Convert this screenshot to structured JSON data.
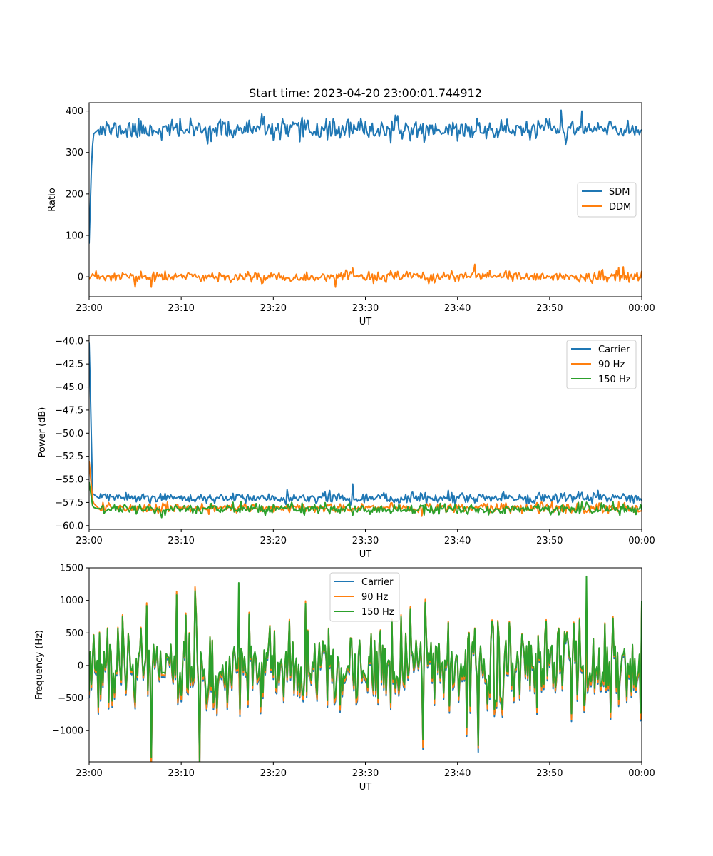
{
  "figure": {
    "title": "Start time: 2023-04-20 23:00:01.744912"
  },
  "chart_data": [
    {
      "type": "line",
      "title": "Start time: 2023-04-20 23:00:01.744912",
      "xlabel": "UT",
      "ylabel": "Ratio",
      "x_range_minutes": [
        0,
        60
      ],
      "x_tick_labels": [
        "23:00",
        "23:10",
        "23:20",
        "23:30",
        "23:40",
        "23:50",
        "00:00"
      ],
      "ylim": [
        -48,
        420
      ],
      "y_ticks": [
        0,
        100,
        200,
        300,
        400
      ],
      "y_tick_labels": [
        "0",
        "100",
        "200",
        "300",
        "400"
      ],
      "legend_position": "center-right",
      "grid": false,
      "series": [
        {
          "name": "SDM",
          "color": "#1f77b4",
          "base": 355,
          "noise": 15,
          "seed": 11,
          "points": [
            [
              0.0,
              80
            ],
            [
              0.3,
              300
            ],
            [
              0.5,
              345
            ],
            [
              1.0,
              355
            ],
            [
              18.8,
              393
            ],
            [
              22.9,
              326
            ],
            [
              51.3,
              402
            ],
            [
              51.8,
              320
            ],
            [
              53.5,
              400
            ],
            [
              60.0,
              355
            ]
          ]
        },
        {
          "name": "DDM",
          "color": "#ff7f0e",
          "base": 0,
          "noise": 8,
          "seed": 23,
          "points": [
            [
              0.0,
              -5
            ],
            [
              5.0,
              -25
            ],
            [
              6.8,
              -25
            ],
            [
              26.8,
              -25
            ],
            [
              41.9,
              30
            ],
            [
              58.0,
              24
            ],
            [
              60.0,
              14
            ]
          ]
        }
      ]
    },
    {
      "type": "line",
      "xlabel": "UT",
      "ylabel": "Power (dB)",
      "x_range_minutes": [
        0,
        60
      ],
      "x_tick_labels": [
        "23:00",
        "23:10",
        "23:20",
        "23:30",
        "23:40",
        "23:50",
        "00:00"
      ],
      "ylim": [
        -60.4,
        -39.4
      ],
      "y_ticks": [
        -60.0,
        -57.5,
        -55.0,
        -52.5,
        -50.0,
        -47.5,
        -45.0,
        -42.5,
        -40.0
      ],
      "y_tick_labels": [
        "−60.0",
        "−57.5",
        "−55.0",
        "−52.5",
        "−50.0",
        "−47.5",
        "−45.0",
        "−42.5",
        "−40.0"
      ],
      "legend_position": "top-right",
      "grid": false,
      "series": [
        {
          "name": "Carrier",
          "color": "#1f77b4",
          "base": -57.0,
          "noise": 0.35,
          "seed": 5,
          "points": [
            [
              0.0,
              -40.2
            ],
            [
              0.2,
              -48.0
            ],
            [
              0.35,
              -56.5
            ],
            [
              1.0,
              -57.0
            ],
            [
              28.6,
              -55.5
            ],
            [
              60.0,
              -57.3
            ]
          ]
        },
        {
          "name": "90 Hz",
          "color": "#ff7f0e",
          "base": -58.1,
          "noise": 0.35,
          "seed": 17,
          "points": [
            [
              0.0,
              -53.0
            ],
            [
              0.4,
              -57.5
            ],
            [
              1.0,
              -58.1
            ],
            [
              60.0,
              -58.4
            ]
          ]
        },
        {
          "name": "150 Hz",
          "color": "#2ca02c",
          "base": -58.2,
          "noise": 0.35,
          "seed": 29,
          "points": [
            [
              0.0,
              -55.3
            ],
            [
              0.4,
              -58.0
            ],
            [
              1.0,
              -58.2
            ],
            [
              60.0,
              -58.3
            ]
          ]
        }
      ]
    },
    {
      "type": "line",
      "xlabel": "UT",
      "ylabel": "Frequency (Hz)",
      "x_range_minutes": [
        0,
        60
      ],
      "x_tick_labels": [
        "23:00",
        "23:10",
        "23:20",
        "23:30",
        "23:40",
        "23:50",
        "00:00"
      ],
      "ylim": [
        -1480,
        1500
      ],
      "y_ticks": [
        -1000,
        -500,
        0,
        500,
        1000,
        1500
      ],
      "y_tick_labels": [
        "−1000",
        "−500",
        "0",
        "500",
        "1000",
        "1500"
      ],
      "legend_position": "top-center",
      "grid": false,
      "series": [
        {
          "name": "Carrier",
          "color": "#1f77b4",
          "base": -60,
          "noise": 330,
          "seed": 41,
          "offset_from_green": -60,
          "points": [
            [
              0.0,
              -500
            ],
            [
              42.3,
              -1330
            ],
            [
              60.0,
              900
            ]
          ]
        },
        {
          "name": "90 Hz",
          "color": "#ff7f0e",
          "base": -30,
          "noise": 330,
          "seed": 41,
          "offset_from_green": -30,
          "points": [
            [
              0.0,
              -450
            ],
            [
              42.3,
              -1270
            ],
            [
              60.0,
              950
            ]
          ]
        },
        {
          "name": "150 Hz",
          "color": "#2ca02c",
          "base": 0,
          "noise": 330,
          "seed": 41,
          "offset_from_green": 0,
          "points": [
            [
              0.0,
              -400
            ],
            [
              16.3,
              1270
            ],
            [
              42.3,
              -1230
            ],
            [
              54.0,
              1370
            ],
            [
              60.0,
              990
            ]
          ]
        }
      ]
    }
  ]
}
